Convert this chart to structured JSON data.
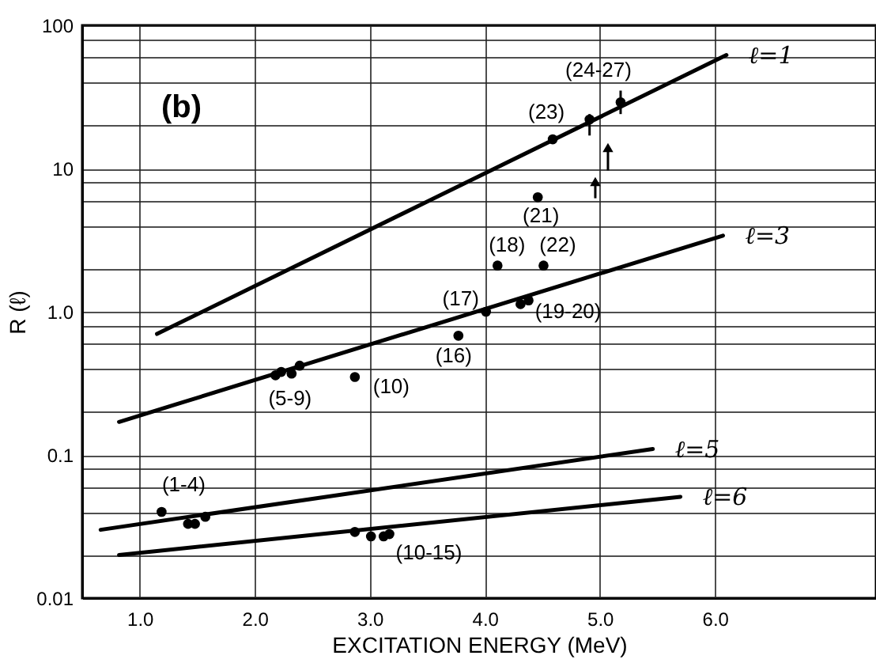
{
  "chart_data": {
    "type": "scatter",
    "xlabel": "EXCITATION ENERGY (MeV)",
    "ylabel": "R (ℓ)",
    "log": "y",
    "grid": true,
    "xlim": [
      0.5,
      7.4
    ],
    "xticks": [
      {
        "value": 1,
        "label": "1.0"
      },
      {
        "value": 2,
        "label": "2.0"
      },
      {
        "value": 3,
        "label": "3.0"
      },
      {
        "value": 4,
        "label": "4.0"
      },
      {
        "value": 5,
        "label": "5.0"
      },
      {
        "value": 6,
        "label": "6.0"
      }
    ],
    "ylim": [
      0.01,
      100
    ],
    "yticks": [
      0.01,
      {
        "value": 0.02,
        "label": null
      },
      {
        "value": 0.04,
        "label": null
      },
      {
        "value": 0.06,
        "label": null
      },
      {
        "value": 0.08,
        "label": null
      },
      0.1,
      {
        "value": 0.2,
        "label": null
      },
      {
        "value": 0.4,
        "label": null
      },
      {
        "value": 0.6,
        "label": null
      },
      {
        "value": 0.8,
        "label": null
      },
      {
        "value": 1,
        "label": "1.0"
      },
      {
        "value": 2,
        "label": null
      },
      {
        "value": 4,
        "label": null
      },
      {
        "value": 6,
        "label": null
      },
      {
        "value": 8,
        "label": null
      },
      10,
      {
        "value": 20,
        "label": null
      },
      {
        "value": 40,
        "label": null
      },
      {
        "value": 60,
        "label": null
      },
      {
        "value": 80,
        "label": null
      },
      100
    ],
    "series": [
      {
        "name": "ℓ=1",
        "type": "line",
        "marker": "none",
        "color": "#000000",
        "x": [
          1.15,
          6.1
        ],
        "values": [
          0.7,
          62
        ]
      },
      {
        "name": "ℓ=3",
        "type": "line",
        "marker": "none",
        "color": "#000000",
        "x": [
          0.82,
          6.07
        ],
        "values": [
          0.17,
          3.4
        ]
      },
      {
        "name": "ℓ=5",
        "type": "line",
        "marker": "none",
        "color": "#000000",
        "x": [
          0.66,
          5.46
        ],
        "values": [
          0.03,
          0.11
        ]
      },
      {
        "name": "ℓ=6",
        "type": "line",
        "marker": "none",
        "color": "#000000",
        "x": [
          0.82,
          5.7
        ],
        "values": [
          0.02,
          0.051
        ]
      },
      {
        "marker": "circle",
        "color": "#000000",
        "x": [
          1.19,
          1.42,
          1.48,
          1.57,
          2.18,
          2.23,
          2.32,
          2.39,
          2.87,
          2.87,
          3.01,
          3.12,
          3.17,
          3.77,
          4.01,
          4.11,
          4.31,
          4.38,
          4.46,
          4.51,
          4.59,
          4.91,
          5.18
        ],
        "values": [
          0.04,
          0.033,
          0.033,
          0.037,
          0.36,
          0.38,
          0.37,
          0.42,
          0.35,
          0.029,
          0.027,
          0.027,
          0.028,
          0.68,
          1.0,
          2.1,
          1.13,
          1.2,
          6.3,
          2.1,
          16,
          22,
          29
        ],
        "errors": [
          null,
          null,
          null,
          null,
          null,
          null,
          null,
          null,
          null,
          null,
          null,
          null,
          null,
          null,
          null,
          null,
          null,
          null,
          null,
          null,
          null,
          [
            17,
            24
          ],
          [
            24,
            35
          ]
        ]
      },
      {
        "type": "scatter",
        "marker": "triangle",
        "color": "#000000",
        "x": [
          4.96,
          5.07
        ],
        "values": [
          8.1,
          14
        ],
        "errors": [
          [
            6.2,
            8.1
          ],
          [
            9.7,
            14
          ]
        ]
      }
    ],
    "annotations": [
      "(b)",
      {
        "text": "(24-27)",
        "x": 5.18,
        "y": 29
      },
      {
        "text": "(23)",
        "x": 4.59,
        "y": 16
      },
      {
        "text": "(21)",
        "x": 4.46,
        "y": 6.3
      },
      {
        "text": "(18)",
        "x": 4.11,
        "y": 2.1
      },
      {
        "text": "(22)",
        "x": 4.51,
        "y": 2.1
      },
      {
        "text": "(17)",
        "x": 4.01,
        "y": 1.0
      },
      {
        "text": "(19-20)",
        "x": 4.38,
        "y": 1.2
      },
      {
        "text": "(16)",
        "x": 3.77,
        "y": 0.68
      },
      {
        "text": "(10)",
        "x": 2.87,
        "y": 0.35
      },
      {
        "text": "(5-9)",
        "x": 2.32,
        "y": 0.37
      },
      {
        "text": "(1-4)",
        "x": 1.19,
        "y": 0.04
      },
      {
        "text": "(10-15)",
        "x": 3.17,
        "y": 0.028
      }
    ]
  }
}
